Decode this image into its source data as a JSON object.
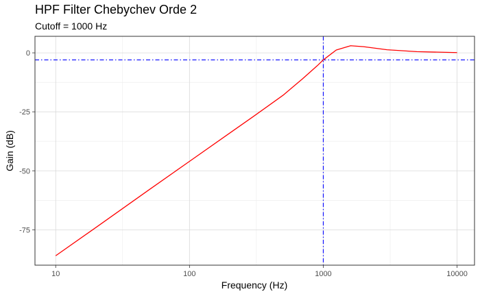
{
  "chart_data": {
    "type": "line",
    "title": "HPF Filter Chebychev Orde 2",
    "subtitle": "Cutoff = 1000 Hz",
    "xlabel": "Frequency (Hz)",
    "ylabel": "Gain (dB)",
    "x_scale": "log10",
    "xlim": [
      7,
      13500
    ],
    "ylim": [
      -90,
      7
    ],
    "x_ticks": [
      10,
      100,
      1000,
      10000
    ],
    "x_tick_labels": [
      "10",
      "100",
      "1000",
      "10000"
    ],
    "y_ticks": [
      0,
      -25,
      -50,
      -75
    ],
    "y_tick_labels": [
      "0",
      "-25",
      "-50",
      "-75"
    ],
    "grid": true,
    "series": [
      {
        "color": "#ff0000",
        "x": [
          10,
          20,
          50,
          100,
          200,
          300,
          500,
          700,
          900,
          1000,
          1250,
          1600,
          2000,
          3000,
          5000,
          10000
        ],
        "y": [
          -86,
          -74,
          -58,
          -46,
          -34,
          -27,
          -18,
          -11,
          -5.5,
          -3,
          1.2,
          3.0,
          2.6,
          1.3,
          0.5,
          0.1
        ]
      }
    ],
    "reference_lines": [
      {
        "orientation": "horizontal",
        "value": -3,
        "color": "#0000ff",
        "style": "dashdot"
      },
      {
        "orientation": "vertical",
        "value": 1000,
        "color": "#0000ff",
        "style": "dashdot"
      }
    ]
  }
}
